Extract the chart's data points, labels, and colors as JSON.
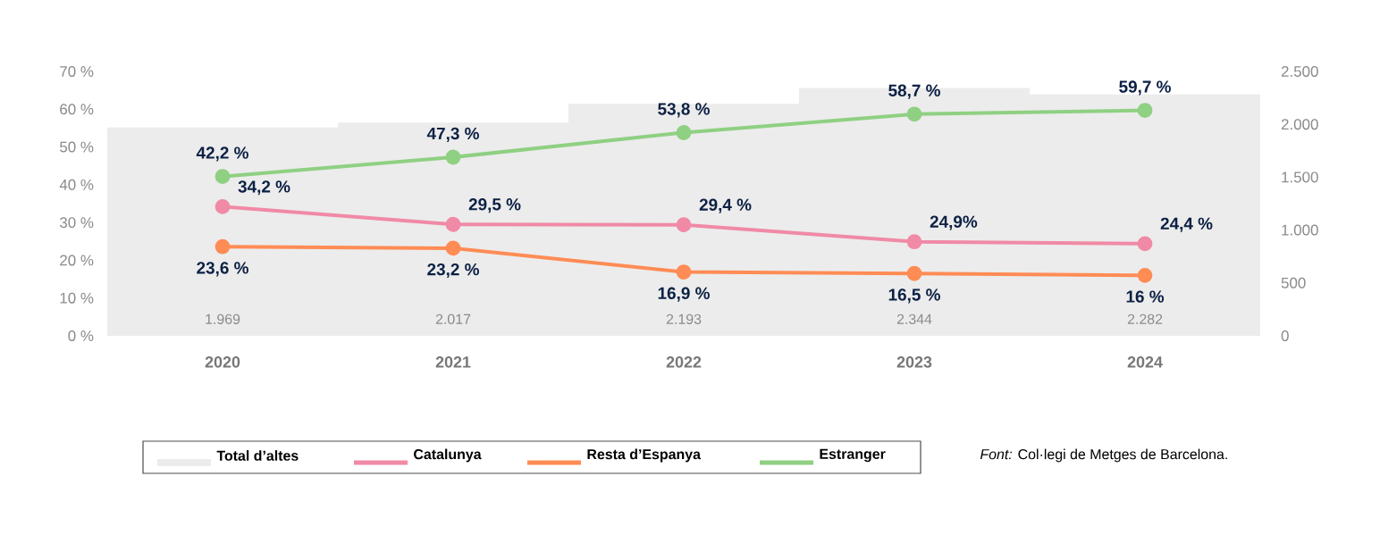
{
  "chart_data": {
    "type": "line",
    "categories": [
      "2020",
      "2021",
      "2022",
      "2023",
      "2024"
    ],
    "series": [
      {
        "name": "Total d’altes",
        "type": "bar",
        "axis": "y2",
        "color": "#ececec",
        "values": [
          1969,
          2017,
          2193,
          2344,
          2282
        ],
        "value_labels": [
          "1.969",
          "2.017",
          "2.193",
          "2.344",
          "2.282"
        ]
      },
      {
        "name": "Catalunya",
        "color": "#f08aa6",
        "values": [
          34.2,
          29.5,
          29.4,
          24.9,
          24.4
        ],
        "value_labels": [
          "34,2 %",
          "29,5 %",
          "29,4 %",
          "24,9%",
          "24,4 %"
        ]
      },
      {
        "name": "Resta d’Espanya",
        "color": "#ff8c55",
        "values": [
          23.6,
          23.2,
          16.9,
          16.5,
          16
        ],
        "value_labels": [
          "23,6 %",
          "23,2 %",
          "16,9 %",
          "16,5 %",
          "16 %"
        ]
      },
      {
        "name": "Estranger",
        "color": "#8fd082",
        "values": [
          42.2,
          47.3,
          53.8,
          58.7,
          59.7
        ],
        "value_labels": [
          "42,2 %",
          "47,3 %",
          "53,8 %",
          "58,7 %",
          "59,7 %"
        ]
      }
    ],
    "ylim": [
      0,
      70
    ],
    "yticks": [
      {
        "value": 0,
        "label": "0 %"
      },
      {
        "value": 10,
        "label": "10 %"
      },
      {
        "value": 20,
        "label": "20 %"
      },
      {
        "value": 30,
        "label": "30 %"
      },
      {
        "value": 40,
        "label": "40 %"
      },
      {
        "value": 50,
        "label": "50 %"
      },
      {
        "value": 60,
        "label": "60 %"
      },
      {
        "value": 70,
        "label": "70 %"
      }
    ],
    "y2lim": [
      0,
      2500
    ],
    "y2ticks": [
      0,
      {
        "value": 500,
        "label": "500"
      },
      {
        "value": 1000,
        "label": "1.000"
      },
      {
        "value": 1500,
        "label": "1.500"
      },
      {
        "value": 2000,
        "label": "2.000"
      },
      {
        "value": 2500,
        "label": "2.500"
      }
    ],
    "marker": "circle",
    "line_style": "solid",
    "grid": false,
    "legend": "bottom",
    "annotations": [
      "*Font:* Col·legi de Metges de Barcelona."
    ]
  }
}
